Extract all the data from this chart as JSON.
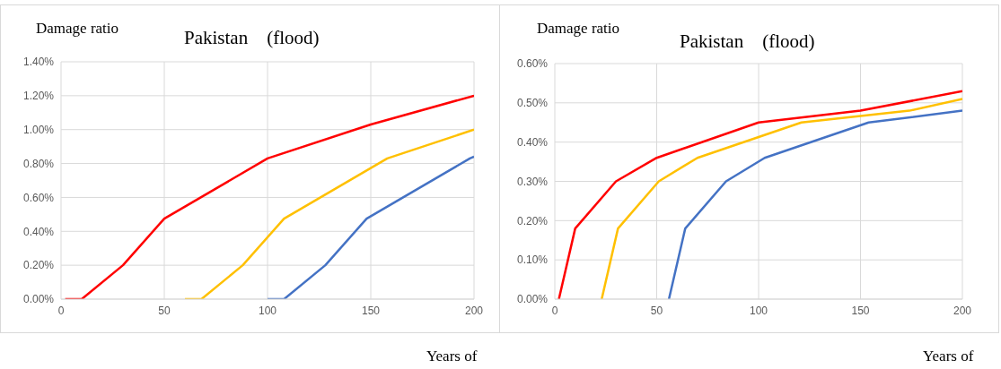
{
  "chart_data": [
    {
      "type": "line",
      "title": "Pakistan　(flood)",
      "ylabel": "Damage ratio",
      "xlabel": "Years of",
      "xlim": [
        0,
        200
      ],
      "xticks": [
        0,
        50,
        100,
        150,
        200
      ],
      "ylim": [
        0,
        1.4
      ],
      "yticks": [
        {
          "value": 0,
          "label": "0.00%"
        },
        {
          "value": 0.2,
          "label": "0.20%"
        },
        {
          "value": 0.4,
          "label": "0.40%"
        },
        {
          "value": 0.6,
          "label": "0.60%"
        },
        {
          "value": 0.8,
          "label": "0.80%"
        },
        {
          "value": 1.0,
          "label": "1.00%"
        },
        {
          "value": 1.2,
          "label": "1.20%"
        },
        {
          "value": 1.4,
          "label": "1.40%"
        }
      ],
      "grid": true,
      "series": [
        {
          "color": "#ff0000",
          "x": [
            2,
            10,
            30,
            50,
            100,
            150,
            200
          ],
          "values": [
            0,
            0,
            0.2,
            0.475,
            0.83,
            1.03,
            1.2
          ]
        },
        {
          "color": "#ffc000",
          "x": [
            60,
            68,
            88,
            108,
            158,
            200
          ],
          "values": [
            0,
            0,
            0.2,
            0.475,
            0.83,
            1.0
          ]
        },
        {
          "color": "#4472c4",
          "x": [
            100,
            108,
            128,
            148,
            198,
            200
          ],
          "values": [
            0,
            0,
            0.2,
            0.475,
            0.83,
            0.84
          ]
        }
      ]
    },
    {
      "type": "line",
      "title": "Pakistan　(flood)",
      "ylabel": "Damage ratio",
      "xlabel": "Years of",
      "xlim": [
        0,
        200
      ],
      "xticks": [
        0,
        50,
        100,
        150,
        200
      ],
      "ylim": [
        0,
        0.6
      ],
      "yticks": [
        {
          "value": 0,
          "label": "0.00%"
        },
        {
          "value": 0.1,
          "label": "0.10%"
        },
        {
          "value": 0.2,
          "label": "0.20%"
        },
        {
          "value": 0.3,
          "label": "0.30%"
        },
        {
          "value": 0.4,
          "label": "0.40%"
        },
        {
          "value": 0.5,
          "label": "0.50%"
        },
        {
          "value": 0.6,
          "label": "0.60%"
        }
      ],
      "grid": true,
      "series": [
        {
          "color": "#ff0000",
          "x": [
            2,
            10,
            30,
            50,
            100,
            150,
            200
          ],
          "values": [
            0,
            0.18,
            0.3,
            0.36,
            0.45,
            0.48,
            0.53
          ]
        },
        {
          "color": "#ffc000",
          "x": [
            23,
            31,
            51,
            70,
            121,
            174,
            200
          ],
          "values": [
            0,
            0.18,
            0.3,
            0.36,
            0.45,
            0.48,
            0.51
          ]
        },
        {
          "color": "#4472c4",
          "x": [
            56,
            64,
            84,
            103,
            154,
            200
          ],
          "values": [
            0,
            0.18,
            0.3,
            0.36,
            0.45,
            0.48
          ]
        }
      ]
    }
  ]
}
